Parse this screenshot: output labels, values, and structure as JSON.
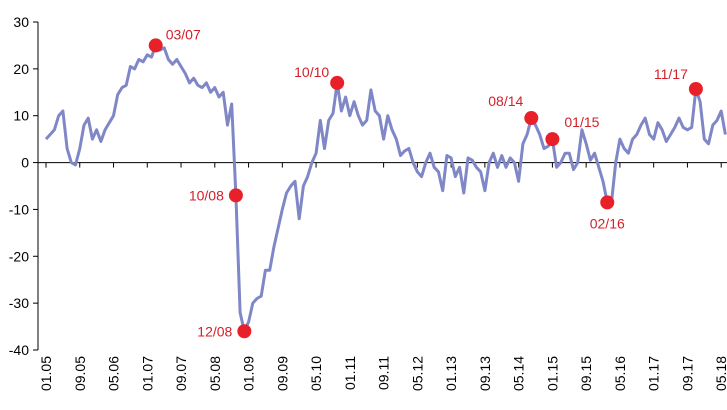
{
  "chart_data": {
    "type": "line",
    "categories": [
      "01.05",
      null,
      null,
      null,
      null,
      null,
      null,
      null,
      "09.05",
      null,
      null,
      null,
      null,
      null,
      null,
      null,
      "05.06",
      null,
      null,
      null,
      null,
      null,
      null,
      null,
      "01.07",
      null,
      null,
      null,
      null,
      null,
      null,
      null,
      "09.07",
      null,
      null,
      null,
      null,
      null,
      null,
      null,
      "05.08",
      null,
      null,
      null,
      null,
      null,
      null,
      null,
      "01.09",
      null,
      null,
      null,
      null,
      null,
      null,
      null,
      "09.09",
      null,
      null,
      null,
      null,
      null,
      null,
      null,
      "05.10",
      null,
      null,
      null,
      null,
      null,
      null,
      null,
      "01.11",
      null,
      null,
      null,
      null,
      null,
      null,
      null,
      "09.11",
      null,
      null,
      null,
      null,
      null,
      null,
      null,
      "05.12",
      null,
      null,
      null,
      null,
      null,
      null,
      null,
      "01.13",
      null,
      null,
      null,
      null,
      null,
      null,
      null,
      "09.13",
      null,
      null,
      null,
      null,
      null,
      null,
      null,
      "05.14",
      null,
      null,
      null,
      null,
      null,
      null,
      null,
      "01.15",
      null,
      null,
      null,
      null,
      null,
      null,
      null,
      "09.15",
      null,
      null,
      null,
      null,
      null,
      null,
      null,
      "05.16",
      null,
      null,
      null,
      null,
      null,
      null,
      null,
      "01.17",
      null,
      null,
      null,
      null,
      null,
      null,
      null,
      "09.17",
      null,
      null,
      null,
      null,
      null,
      null,
      null,
      "05.18",
      null
    ],
    "series": [
      {
        "color": "#7f87c7",
        "values": [
          5,
          6,
          7,
          10,
          11,
          3,
          0,
          -0.5,
          3,
          8,
          9.5,
          5,
          7,
          4.5,
          7,
          8.5,
          10,
          14.5,
          16,
          16.5,
          20.5,
          20,
          22,
          21.5,
          23,
          22.5,
          25,
          24,
          24.5,
          22,
          21,
          22,
          20.5,
          19,
          17,
          18,
          16.5,
          16,
          17,
          15,
          16,
          14,
          15,
          8,
          12.5,
          -7,
          -32,
          -36,
          -34,
          -30,
          -29,
          -28.5,
          -23,
          -23,
          -18,
          -14,
          -10,
          -6.5,
          -5,
          -4,
          -12,
          -5,
          -3,
          0,
          2,
          9,
          3,
          9,
          10.5,
          17,
          11,
          14,
          10,
          13,
          10,
          8,
          9,
          15.5,
          11,
          10,
          5,
          10,
          7,
          5,
          1.5,
          2.5,
          3,
          0,
          -2,
          -3,
          0,
          2,
          -1,
          -2,
          -6,
          1.5,
          1,
          -3,
          -1,
          -6.5,
          1,
          0.5,
          -1,
          -2,
          -6,
          0,
          2,
          -1,
          1.5,
          -1,
          1,
          0,
          -4,
          4,
          6,
          9.5,
          8,
          6,
          3,
          3.5,
          5,
          -1,
          0,
          2,
          2,
          -1.5,
          0,
          7,
          4,
          0.5,
          2,
          -1,
          -4,
          -8.5,
          -8.5,
          0,
          5,
          3,
          2,
          5,
          6,
          8,
          9.5,
          6,
          5,
          8.5,
          7,
          4.5,
          6,
          7.5,
          9.5,
          7.5,
          7,
          7.5,
          15.7,
          13,
          5,
          4,
          8,
          9,
          11,
          6
        ]
      }
    ],
    "annotations": [
      "03/07",
      "10/08",
      "12/08",
      "10/10",
      "08/14",
      "01/15",
      "02/16",
      "11/17"
    ],
    "annotation_color": "#e8202a",
    "ylim": [
      -40,
      30
    ],
    "yticks": [
      30,
      20,
      10,
      0,
      -10,
      -20,
      -30,
      -40
    ]
  }
}
